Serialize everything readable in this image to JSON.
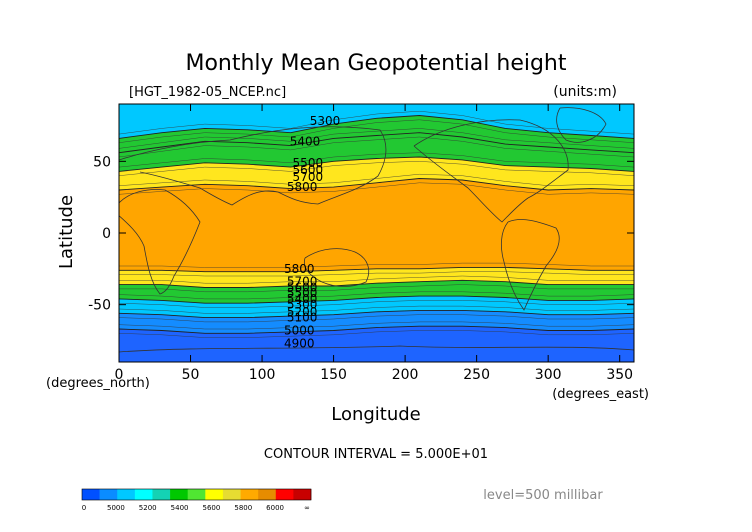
{
  "chart_data": {
    "type": "heatmap",
    "title": "Monthly Mean Geopotential height",
    "file_label": "[HGT_1982-05_NCEP.nc]",
    "units_label": "(units:m)",
    "xlabel": "Longitude",
    "ylabel": "Latitude",
    "x_unit_label": "(degrees_east)",
    "y_unit_label": "(degrees_north)",
    "xlim": [
      0,
      360
    ],
    "ylim": [
      -90,
      90
    ],
    "x_ticks": [
      0,
      50,
      100,
      150,
      200,
      250,
      300,
      350
    ],
    "y_ticks": [
      50,
      0,
      -50
    ],
    "contour_interval_text": "CONTOUR INTERVAL = 5.000E+01",
    "level_text": "level=500 millibar",
    "colorbar": {
      "labels": [
        "0",
        "5000",
        "5200",
        "5400",
        "5600",
        "5800",
        "6000",
        "∞"
      ],
      "colors": [
        "#0050ff",
        "#0a8cff",
        "#00c8ff",
        "#00ffff",
        "#14d2b4",
        "#00c800",
        "#50e632",
        "#ffff00",
        "#e6dc32",
        "#ffaa00",
        "#e68c00",
        "#ff0000",
        "#c80000"
      ]
    },
    "band_colors": {
      "lt5000": "#1e64ff",
      "5000": "#148cff",
      "5200": "#00c8ff",
      "5400": "#22c832",
      "5600": "#ffe61e",
      "5800": "#ffa500"
    },
    "series": [
      {
        "name": "north_5200",
        "level": 5200,
        "x": [
          0,
          30,
          60,
          90,
          120,
          150,
          180,
          210,
          240,
          270,
          300,
          330,
          360
        ],
        "y": [
          66,
          70,
          73,
          72,
          70,
          76,
          80,
          82,
          79,
          73,
          70,
          68,
          66
        ]
      },
      {
        "name": "north_5400",
        "level": 5400,
        "x": [
          0,
          30,
          60,
          90,
          120,
          150,
          180,
          210,
          240,
          270,
          300,
          330,
          360
        ],
        "y": [
          56,
          60,
          64,
          63,
          61,
          66,
          68,
          70,
          67,
          62,
          60,
          58,
          56
        ]
      },
      {
        "name": "north_5600",
        "level": 5600,
        "x": [
          0,
          30,
          60,
          90,
          120,
          150,
          180,
          210,
          240,
          270,
          300,
          330,
          360
        ],
        "y": [
          43,
          46,
          49,
          48,
          46,
          50,
          52,
          53,
          51,
          47,
          46,
          45,
          43
        ]
      },
      {
        "name": "north_5800",
        "level": 5800,
        "x": [
          0,
          30,
          60,
          90,
          120,
          150,
          180,
          210,
          240,
          270,
          300,
          330,
          360
        ],
        "y": [
          30,
          32,
          34,
          33,
          31,
          32,
          35,
          38,
          37,
          33,
          30,
          31,
          30
        ]
      },
      {
        "name": "south_5800",
        "level": 5800,
        "x": [
          0,
          30,
          60,
          90,
          120,
          150,
          180,
          210,
          240,
          270,
          300,
          330,
          360
        ],
        "y": [
          -26,
          -26,
          -27,
          -27,
          -27,
          -26,
          -25,
          -25,
          -24,
          -24,
          -25,
          -26,
          -26
        ]
      },
      {
        "name": "south_5600",
        "level": 5600,
        "x": [
          0,
          30,
          60,
          90,
          120,
          150,
          180,
          210,
          240,
          270,
          300,
          330,
          360
        ],
        "y": [
          -36,
          -36,
          -38,
          -38,
          -37,
          -37,
          -35,
          -34,
          -33,
          -34,
          -36,
          -36,
          -36
        ]
      },
      {
        "name": "south_5400",
        "level": 5400,
        "x": [
          0,
          30,
          60,
          90,
          120,
          150,
          180,
          210,
          240,
          270,
          300,
          330,
          360
        ],
        "y": [
          -46,
          -47,
          -49,
          -49,
          -48,
          -47,
          -45,
          -44,
          -44,
          -45,
          -47,
          -47,
          -46
        ]
      },
      {
        "name": "south_5200",
        "level": 5200,
        "x": [
          0,
          30,
          60,
          90,
          120,
          150,
          180,
          210,
          240,
          270,
          300,
          330,
          360
        ],
        "y": [
          -56,
          -57,
          -59,
          -59,
          -58,
          -57,
          -55,
          -54,
          -54,
          -55,
          -57,
          -57,
          -56
        ]
      },
      {
        "name": "south_5000",
        "level": 5000,
        "x": [
          0,
          30,
          60,
          90,
          120,
          150,
          180,
          210,
          240,
          270,
          300,
          330,
          360
        ],
        "y": [
          -67,
          -68,
          -70,
          -70,
          -69,
          -68,
          -66,
          -65,
          -65,
          -66,
          -68,
          -68,
          -67
        ]
      }
    ],
    "contour_labels": [
      {
        "text": "5300",
        "lon": 144,
        "lat": 78
      },
      {
        "text": "5400",
        "lon": 130,
        "lat": 64
      },
      {
        "text": "5500",
        "lon": 132,
        "lat": 49
      },
      {
        "text": "5600",
        "lon": 132,
        "lat": 44
      },
      {
        "text": "5700",
        "lon": 132,
        "lat": 39
      },
      {
        "text": "5800",
        "lon": 128,
        "lat": 32
      },
      {
        "text": "5800",
        "lon": 126,
        "lat": -25
      },
      {
        "text": "5700",
        "lon": 128,
        "lat": -34
      },
      {
        "text": "5600",
        "lon": 128,
        "lat": -38
      },
      {
        "text": "5500",
        "lon": 128,
        "lat": -42
      },
      {
        "text": "5400",
        "lon": 128,
        "lat": -46
      },
      {
        "text": "5300",
        "lon": 128,
        "lat": -50
      },
      {
        "text": "5200",
        "lon": 128,
        "lat": -55
      },
      {
        "text": "5100",
        "lon": 128,
        "lat": -59
      },
      {
        "text": "5000",
        "lon": 126,
        "lat": -68
      },
      {
        "text": "4900",
        "lon": 126,
        "lat": -77
      }
    ]
  }
}
